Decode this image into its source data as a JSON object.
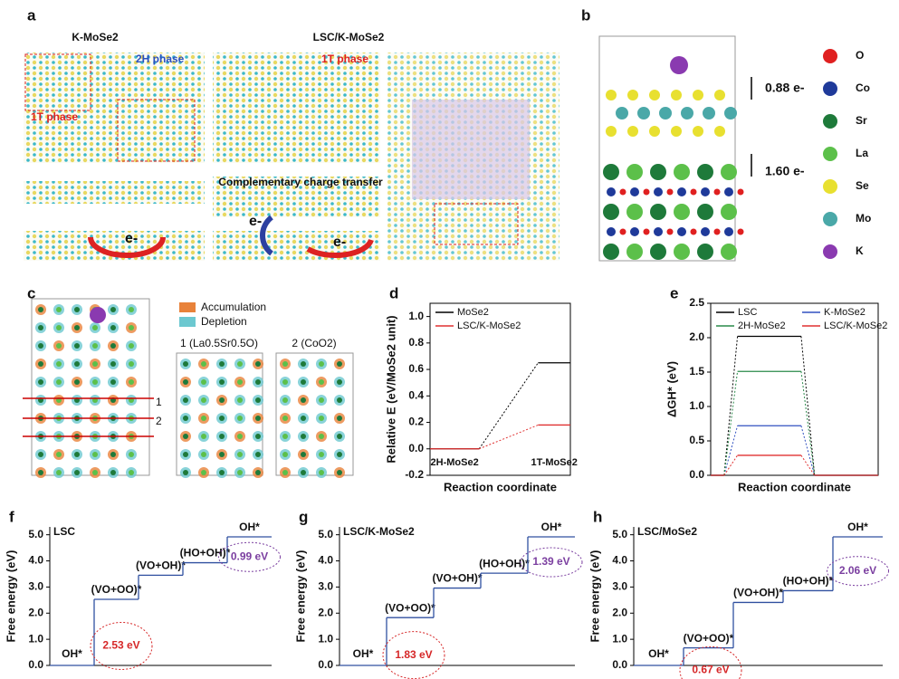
{
  "figure": {
    "panel_labels": [
      "a",
      "b",
      "c"
    ],
    "a": {
      "left_title": "K-MoSe2",
      "right_title": "LSC/K-MoSe2",
      "phase_2h": "2H phase",
      "phase_1t_left": "1T phase",
      "phase_1t_right": "1T phase",
      "transfer": "Complementary charge transfer",
      "electrons": [
        "e-",
        "e-",
        "e-"
      ]
    },
    "b": {
      "transfers": [
        "0.88 e-",
        "1.60 e-"
      ],
      "legend": [
        "O",
        "Co",
        "Sr",
        "La",
        "Se",
        "Mo",
        "K"
      ],
      "legend_colors": [
        "#e02020",
        "#1f3a9a",
        "#1e7a3a",
        "#5cc04a",
        "#e8e030",
        "#4aa8a8",
        "#8a3ab0"
      ]
    },
    "c": {
      "legend": [
        "Accumulation",
        "Depletion"
      ],
      "legend_colors": [
        "#e8823a",
        "#6cc8d0"
      ],
      "captions": [
        "1 (La0.5Sr0.5O)",
        "2 (CoO2)"
      ],
      "markers": [
        "1",
        "2"
      ]
    }
  },
  "chart_data": [
    {
      "type": "energy-profile",
      "label": "d",
      "ylabel": "Relative E (eV/MoSe2 unit)",
      "xlabel": "Reaction coordinate",
      "categories": [
        "2H-MoSe2",
        "1T-MoSe2"
      ],
      "series": [
        {
          "name": "MoSe2",
          "color": "#000000",
          "values": [
            0,
            0.65
          ]
        },
        {
          "name": "LSC/K-MoSe2",
          "color": "#e03030",
          "values": [
            0,
            0.18
          ]
        }
      ],
      "ylim": [
        -0.2,
        1.1
      ],
      "yticks": [
        -0.2,
        {
          "value": 0,
          "label": "0.0"
        },
        0.2,
        0.4,
        0.6,
        0.8,
        {
          "value": 1,
          "label": "1.0"
        }
      ]
    },
    {
      "type": "energy-profile",
      "label": "e",
      "ylabel": "ΔGH* (eV)",
      "xlabel": "Reaction coordinate",
      "series": [
        {
          "name": "LSC",
          "color": "#000000",
          "values": [
            0,
            2.02,
            0
          ]
        },
        {
          "name": "K-MoSe2",
          "color": "#3050c0",
          "values": [
            0,
            0.72,
            0
          ]
        },
        {
          "name": "2H-MoSe2",
          "color": "#2a8a4a",
          "values": [
            0,
            1.51,
            0
          ]
        },
        {
          "name": "LSC/K-MoSe2",
          "color": "#e03030",
          "values": [
            0,
            0.29,
            0
          ]
        }
      ],
      "ylim": [
        0,
        2.5
      ],
      "yticks": [
        {
          "value": 0,
          "label": "0.0"
        },
        0.5,
        {
          "value": 1,
          "label": "1.0"
        },
        1.5,
        {
          "value": 2,
          "label": "2.0"
        },
        2.5
      ]
    },
    {
      "type": "step",
      "label": "f",
      "title": "LSC",
      "ylabel": "Free energy (eV)",
      "color": "#3050a0",
      "categories": [
        "OH*",
        "(VO+OO)*",
        "(VO+OH)*",
        "(HO+OH)*",
        "OH*"
      ],
      "values": [
        0,
        2.53,
        3.45,
        3.93,
        4.92
      ],
      "annotations": [
        {
          "text": "2.53 eV",
          "color": "#d62728"
        },
        {
          "text": "0.99 eV",
          "color": "#7b3fa0"
        }
      ],
      "ylim": [
        0,
        5.3
      ],
      "yticks": [
        {
          "value": 0,
          "label": "0.0"
        },
        {
          "value": 1,
          "label": "1.0"
        },
        {
          "value": 2,
          "label": "2.0"
        },
        {
          "value": 3,
          "label": "3.0"
        },
        {
          "value": 4,
          "label": "4.0"
        },
        {
          "value": 5,
          "label": "5.0"
        }
      ]
    },
    {
      "type": "step",
      "label": "g",
      "title": "LSC/K-MoSe2",
      "ylabel": "Free energy (eV)",
      "color": "#3050a0",
      "categories": [
        "OH*",
        "(VO+OO)*",
        "(VO+OH)*",
        "(HO+OH)*",
        "OH*"
      ],
      "values": [
        0,
        1.83,
        2.96,
        3.53,
        4.92
      ],
      "annotations": [
        {
          "text": "1.83 eV",
          "color": "#d62728"
        },
        {
          "text": "1.39 eV",
          "color": "#7b3fa0"
        }
      ],
      "ylim": [
        0,
        5.3
      ],
      "yticks": [
        {
          "value": 0,
          "label": "0.0"
        },
        {
          "value": 1,
          "label": "1.0"
        },
        {
          "value": 2,
          "label": "2.0"
        },
        {
          "value": 3,
          "label": "3.0"
        },
        {
          "value": 4,
          "label": "4.0"
        },
        {
          "value": 5,
          "label": "5.0"
        }
      ]
    },
    {
      "type": "step",
      "label": "h",
      "title": "LSC/MoSe2",
      "ylabel": "Free energy (eV)",
      "color": "#3050a0",
      "categories": [
        "OH*",
        "(VO+OO)*",
        "(VO+OH)*",
        "(HO+OH)*",
        "OH*"
      ],
      "values": [
        0,
        0.67,
        2.41,
        2.86,
        4.92
      ],
      "annotations": [
        {
          "text": "0.67 eV",
          "color": "#d62728"
        },
        {
          "text": "2.06 eV",
          "color": "#7b3fa0"
        }
      ],
      "ylim": [
        0,
        5.3
      ],
      "yticks": [
        {
          "value": 0,
          "label": "0.0"
        },
        {
          "value": 1,
          "label": "1.0"
        },
        {
          "value": 2,
          "label": "2.0"
        },
        {
          "value": 3,
          "label": "3.0"
        },
        {
          "value": 4,
          "label": "4.0"
        },
        {
          "value": 5,
          "label": "5.0"
        }
      ]
    }
  ]
}
